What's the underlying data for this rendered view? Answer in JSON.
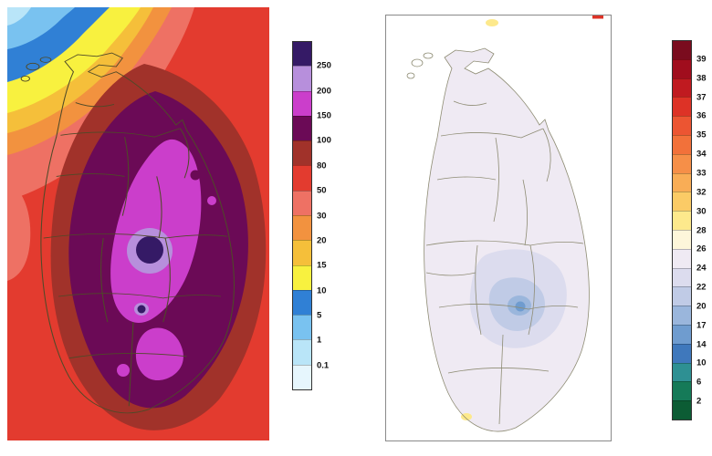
{
  "figure": {
    "description": "Two filled-contour maps of Sri Lanka with vertical color scales",
    "background": "#ffffff"
  },
  "left_map": {
    "name": "sri-lanka-rainfall-contour-map",
    "boundary_color": "#4f4a28",
    "colorbar": {
      "labels": [
        "250",
        "200",
        "150",
        "100",
        "80",
        "50",
        "30",
        "20",
        "15",
        "10",
        "5",
        "1",
        "0.1"
      ],
      "colors": [
        "#351a66",
        "#b78fdc",
        "#cb3ecb",
        "#6b0a56",
        "#a1322a",
        "#e33b2f",
        "#ee7164",
        "#f2923f",
        "#f5bf3a",
        "#f8f13f",
        "#3080d5",
        "#79c2f0",
        "#b9e5f8",
        "#e6f6fd"
      ]
    }
  },
  "right_map": {
    "name": "sri-lanka-temperature-map",
    "boundary_color": "#8e8c74",
    "frame_color": "#8a8a8a",
    "colorbar": {
      "labels": [
        "39",
        "38",
        "37",
        "36",
        "35",
        "34",
        "33",
        "32",
        "30",
        "28",
        "26",
        "24",
        "22",
        "20",
        "17",
        "14",
        "10",
        "6",
        "2"
      ],
      "colors": [
        "#7a0c1e",
        "#a00d1d",
        "#c01a20",
        "#dd3226",
        "#ec5532",
        "#f2713a",
        "#f68f48",
        "#f9ad56",
        "#fbcb66",
        "#fde98c",
        "#fdf6da",
        "#efeaf3",
        "#dcdcee",
        "#c0cbe6",
        "#9ab6dc",
        "#6f9ccf",
        "#3f78bc",
        "#2e9093",
        "#157a58",
        "#0c5c34"
      ]
    }
  }
}
